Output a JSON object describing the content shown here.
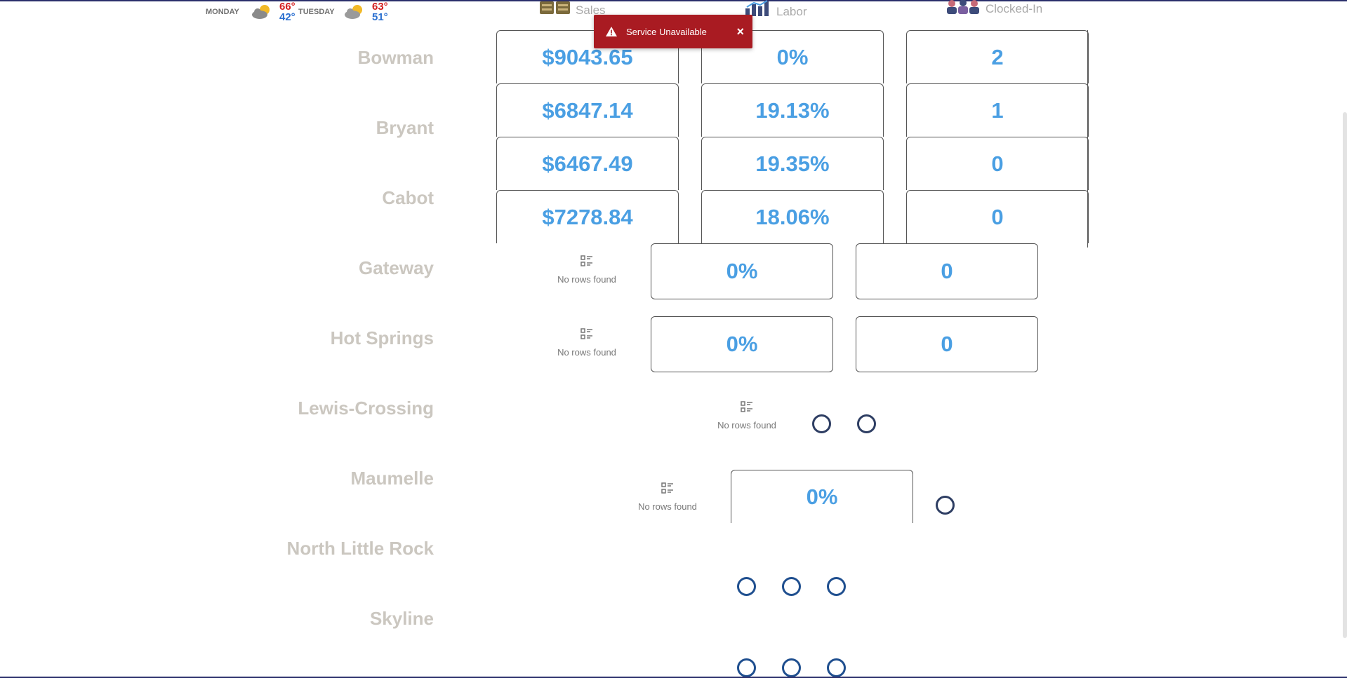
{
  "weather": [
    {
      "day": "MONDAY",
      "high": "66°",
      "low": "42°",
      "icon": "partly-cloudy-icon"
    },
    {
      "day": "TUESDAY",
      "high": "63°",
      "low": "51°",
      "icon": "partly-cloudy-icon"
    }
  ],
  "columns": {
    "sales": "Sales",
    "labor": "Labor",
    "clocked_in": "Clocked-In"
  },
  "toast": {
    "message": "Service Unavailable",
    "close": "×"
  },
  "empty_label": "No rows found",
  "stores": [
    {
      "name": "Bowman"
    },
    {
      "name": "Bryant"
    },
    {
      "name": "Cabot"
    },
    {
      "name": "Gateway"
    },
    {
      "name": "Hot Springs"
    },
    {
      "name": "Lewis-Crossing"
    },
    {
      "name": "Maumelle"
    },
    {
      "name": "North Little Rock"
    },
    {
      "name": "Skyline"
    }
  ],
  "rows": [
    {
      "sales": "$9043.65",
      "labor": "0%",
      "clocked": "2"
    },
    {
      "sales": "$6847.14",
      "labor": "19.13%",
      "clocked": "1"
    },
    {
      "sales": "$6467.49",
      "labor": "19.35%",
      "clocked": "0"
    },
    {
      "sales": "$7278.84",
      "labor": "18.06%",
      "clocked": "0"
    },
    {
      "labor": "0%",
      "clocked": "0"
    },
    {
      "labor": "0%",
      "clocked": "0"
    },
    {
      "labor": "0%"
    }
  ],
  "colors": {
    "value": "#4a9fe3",
    "toast": "#a91b22",
    "high": "#d42020",
    "low": "#2a6fd0"
  }
}
